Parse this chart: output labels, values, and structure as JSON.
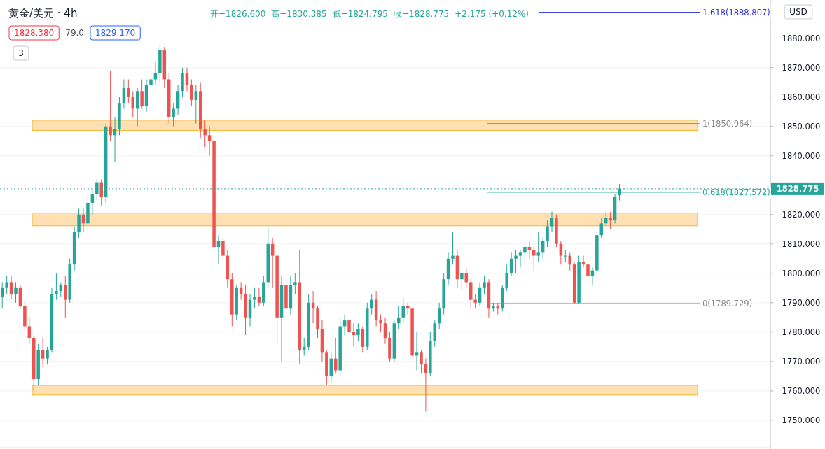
{
  "chart_data": {
    "type": "candlestick",
    "title": "黄金/美元 · 4h",
    "annotations": [
      "开=1826.600",
      "高=1830.385",
      "低=1824.795",
      "收=1828.775",
      "+2.175 (+0.12%)",
      "1828.380",
      "79.0",
      "1829.170",
      "3",
      "USD"
    ],
    "categories": [
      null,
      null,
      null,
      null,
      null,
      null,
      null,
      null,
      null,
      null,
      null,
      null,
      null,
      null,
      null,
      null,
      null,
      null,
      null,
      null,
      null,
      null,
      null,
      null,
      null,
      null,
      null,
      null,
      null,
      null,
      null,
      null,
      null,
      null,
      null,
      null,
      null,
      null,
      null,
      null,
      null,
      null,
      null,
      null,
      null,
      null,
      null,
      null,
      null,
      null,
      null,
      null,
      null,
      null,
      null,
      null,
      null,
      null,
      null,
      null,
      null,
      null,
      null,
      null,
      null,
      null,
      null,
      null,
      null,
      null,
      null,
      null,
      null,
      null,
      null,
      null,
      null,
      null,
      null,
      null,
      null,
      null,
      null,
      null,
      null,
      null,
      null,
      null,
      null,
      null,
      null,
      null,
      null,
      null,
      null,
      null,
      null,
      null,
      null,
      null,
      null,
      null,
      null,
      null,
      null,
      null,
      null,
      null,
      null,
      null,
      null,
      null,
      null,
      null,
      null,
      null,
      null,
      null,
      null,
      null,
      null,
      null,
      null,
      null,
      null,
      null,
      null,
      null,
      null,
      null,
      null,
      null,
      null,
      null,
      null,
      null,
      null,
      null,
      null,
      null,
      null,
      null,
      null,
      null,
      null,
      null,
      null,
      null,
      null,
      null,
      null,
      null,
      null,
      null,
      null,
      null,
      null,
      null,
      null,
      null,
      null,
      null,
      null,
      null,
      null,
      null,
      null,
      null,
      null,
      null,
      null
    ],
    "ohlc": [
      [
        1792,
        1797,
        1788,
        1795
      ],
      [
        1795,
        1799,
        1793,
        1797
      ],
      [
        1797,
        1799,
        1791,
        1793
      ],
      [
        1793,
        1797,
        1790,
        1795
      ],
      [
        1795,
        1796,
        1788,
        1789
      ],
      [
        1789,
        1791,
        1780,
        1782
      ],
      [
        1782,
        1785,
        1776,
        1778
      ],
      [
        1778,
        1779,
        1760,
        1764
      ],
      [
        1764,
        1776,
        1762,
        1774
      ],
      [
        1774,
        1778,
        1768,
        1771
      ],
      [
        1771,
        1775,
        1769,
        1774
      ],
      [
        1774,
        1795,
        1773,
        1793
      ],
      [
        1793,
        1800,
        1791,
        1794
      ],
      [
        1794,
        1797,
        1792,
        1796
      ],
      [
        1796,
        1799,
        1785,
        1791
      ],
      [
        1791,
        1805,
        1790,
        1803
      ],
      [
        1803,
        1816,
        1801,
        1814
      ],
      [
        1814,
        1822,
        1812,
        1820
      ],
      [
        1820,
        1822,
        1814,
        1817
      ],
      [
        1817,
        1826,
        1815,
        1824
      ],
      [
        1824,
        1829,
        1820,
        1827
      ],
      [
        1827,
        1832,
        1825,
        1831
      ],
      [
        1831,
        1832,
        1823,
        1826
      ],
      [
        1826,
        1851,
        1824,
        1850
      ],
      [
        1850,
        1869,
        1845,
        1847
      ],
      [
        1847,
        1853,
        1838,
        1849
      ],
      [
        1849,
        1860,
        1847,
        1858
      ],
      [
        1858,
        1866,
        1856,
        1863
      ],
      [
        1863,
        1866,
        1858,
        1860
      ],
      [
        1860,
        1862,
        1853,
        1856
      ],
      [
        1856,
        1863,
        1850,
        1862
      ],
      [
        1862,
        1866,
        1856,
        1857
      ],
      [
        1857,
        1866,
        1855,
        1864
      ],
      [
        1864,
        1868,
        1861,
        1866
      ],
      [
        1866,
        1872,
        1864,
        1868
      ],
      [
        1868,
        1878,
        1865,
        1876
      ],
      [
        1876,
        1877,
        1863,
        1866
      ],
      [
        1866,
        1868,
        1851,
        1853
      ],
      [
        1853,
        1858,
        1850,
        1856
      ],
      [
        1856,
        1864,
        1854,
        1862
      ],
      [
        1862,
        1870,
        1860,
        1868
      ],
      [
        1868,
        1870,
        1862,
        1864
      ],
      [
        1864,
        1866,
        1857,
        1859
      ],
      [
        1859,
        1864,
        1851,
        1862
      ],
      [
        1862,
        1865,
        1846,
        1849
      ],
      [
        1849,
        1852,
        1843,
        1847
      ],
      [
        1847,
        1850,
        1840,
        1845
      ],
      [
        1845,
        1846,
        1805,
        1809
      ],
      [
        1809,
        1813,
        1803,
        1811
      ],
      [
        1811,
        1812,
        1804,
        1806
      ],
      [
        1806,
        1808,
        1795,
        1798
      ],
      [
        1798,
        1800,
        1782,
        1786
      ],
      [
        1786,
        1796,
        1784,
        1795
      ],
      [
        1795,
        1797,
        1791,
        1793
      ],
      [
        1793,
        1796,
        1779,
        1785
      ],
      [
        1785,
        1793,
        1782,
        1791
      ],
      [
        1791,
        1795,
        1788,
        1792
      ],
      [
        1792,
        1795,
        1789,
        1790
      ],
      [
        1790,
        1799,
        1789,
        1797
      ],
      [
        1797,
        1816,
        1795,
        1810
      ],
      [
        1810,
        1812,
        1795,
        1806
      ],
      [
        1806,
        1807,
        1776,
        1785
      ],
      [
        1785,
        1799,
        1770,
        1796
      ],
      [
        1796,
        1800,
        1786,
        1788
      ],
      [
        1788,
        1799,
        1786,
        1796
      ],
      [
        1796,
        1800,
        1793,
        1797
      ],
      [
        1797,
        1808,
        1769,
        1774
      ],
      [
        1774,
        1778,
        1772,
        1775
      ],
      [
        1775,
        1793,
        1774,
        1790
      ],
      [
        1790,
        1794,
        1783,
        1788
      ],
      [
        1788,
        1789,
        1778,
        1781
      ],
      [
        1781,
        1784,
        1770,
        1773
      ],
      [
        1773,
        1774,
        1762,
        1765
      ],
      [
        1765,
        1773,
        1763,
        1771
      ],
      [
        1771,
        1778,
        1766,
        1767
      ],
      [
        1767,
        1785,
        1765,
        1782
      ],
      [
        1782,
        1786,
        1779,
        1784
      ],
      [
        1784,
        1785,
        1778,
        1780
      ],
      [
        1780,
        1783,
        1775,
        1779
      ],
      [
        1779,
        1783,
        1777,
        1781
      ],
      [
        1781,
        1782,
        1773,
        1775
      ],
      [
        1775,
        1790,
        1774,
        1788
      ],
      [
        1788,
        1793,
        1786,
        1791
      ],
      [
        1791,
        1794,
        1782,
        1784
      ],
      [
        1784,
        1786,
        1780,
        1783
      ],
      [
        1783,
        1785,
        1776,
        1778
      ],
      [
        1778,
        1780,
        1770,
        1771
      ],
      [
        1771,
        1784,
        1770,
        1783
      ],
      [
        1783,
        1789,
        1781,
        1785
      ],
      [
        1785,
        1792,
        1783,
        1789
      ],
      [
        1789,
        1790,
        1786,
        1788
      ],
      [
        1788,
        1789,
        1770,
        1772
      ],
      [
        1772,
        1780,
        1767,
        1773
      ],
      [
        1773,
        1774,
        1766,
        1769
      ],
      [
        1769,
        1771,
        1753,
        1766
      ],
      [
        1766,
        1780,
        1765,
        1777
      ],
      [
        1777,
        1784,
        1775,
        1783
      ],
      [
        1783,
        1790,
        1781,
        1788
      ],
      [
        1788,
        1800,
        1786,
        1798
      ],
      [
        1798,
        1807,
        1796,
        1805
      ],
      [
        1805,
        1814,
        1803,
        1806
      ],
      [
        1806,
        1808,
        1795,
        1798
      ],
      [
        1798,
        1801,
        1794,
        1800
      ],
      [
        1800,
        1802,
        1795,
        1797
      ],
      [
        1797,
        1798,
        1788,
        1791
      ],
      [
        1791,
        1793,
        1788,
        1790
      ],
      [
        1790,
        1797,
        1789,
        1795
      ],
      [
        1795,
        1799,
        1793,
        1797
      ],
      [
        1797,
        1798,
        1785,
        1788
      ],
      [
        1788,
        1790,
        1787,
        1789
      ],
      [
        1789,
        1790,
        1786,
        1788
      ],
      [
        1788,
        1796,
        1787,
        1795
      ],
      [
        1795,
        1803,
        1794,
        1800
      ],
      [
        1800,
        1807,
        1799,
        1805
      ],
      [
        1805,
        1808,
        1800,
        1806
      ],
      [
        1806,
        1808,
        1802,
        1807
      ],
      [
        1807,
        1810,
        1804,
        1809
      ],
      [
        1809,
        1811,
        1805,
        1808
      ],
      [
        1808,
        1809,
        1801,
        1806
      ],
      [
        1806,
        1814,
        1804,
        1807
      ],
      [
        1807,
        1812,
        1805,
        1811
      ],
      [
        1811,
        1818,
        1809,
        1816
      ],
      [
        1816,
        1821,
        1814,
        1819
      ],
      [
        1819,
        1820,
        1809,
        1810
      ],
      [
        1810,
        1811,
        1803,
        1806
      ],
      [
        1806,
        1808,
        1804,
        1806
      ],
      [
        1806,
        1807,
        1801,
        1803
      ],
      [
        1803,
        1804,
        1789.5,
        1790
      ],
      [
        1790,
        1806,
        1789.5,
        1804
      ],
      [
        1804,
        1806,
        1802,
        1803
      ],
      [
        1803,
        1804,
        1797,
        1799
      ],
      [
        1799,
        1802,
        1796,
        1801
      ],
      [
        1801,
        1814,
        1800,
        1813
      ],
      [
        1813,
        1819,
        1812,
        1817
      ],
      [
        1817,
        1821,
        1816,
        1819
      ],
      [
        1819,
        1821,
        1815,
        1818
      ],
      [
        1818,
        1827,
        1817,
        1826
      ],
      [
        1826.6,
        1830.385,
        1824.795,
        1828.775
      ],
      null,
      null,
      null,
      null,
      null,
      null,
      null,
      null,
      null,
      null,
      null,
      null,
      null,
      null,
      null,
      null,
      null,
      null,
      null,
      null,
      null,
      null,
      null,
      null,
      null,
      null,
      null,
      null,
      null,
      null,
      null,
      null,
      null
    ],
    "ylim": [
      1740.7,
      1893
    ],
    "yticks": [
      {
        "value": 1750,
        "label": "1750.000"
      },
      {
        "value": 1760,
        "label": "1760.000"
      },
      {
        "value": 1770,
        "label": "1770.000"
      },
      {
        "value": 1780,
        "label": "1780.000"
      },
      {
        "value": 1790,
        "label": "1790.000"
      },
      {
        "value": 1800,
        "label": "1800.000"
      },
      {
        "value": 1810,
        "label": "1810.000"
      },
      {
        "value": 1820,
        "label": "1820.000"
      },
      {
        "value": 1840,
        "label": "1840.000"
      },
      {
        "value": 1850,
        "label": "1850.000"
      },
      {
        "value": 1860,
        "label": "1860.000"
      },
      {
        "value": 1870,
        "label": "1870.000"
      },
      {
        "value": 1880,
        "label": "1880.000"
      }
    ],
    "tick_labels": "y",
    "grid": "y",
    "bands": [
      {
        "axis": "y",
        "from": 1848.6,
        "to": 1852.1,
        "color": "#ffe0b2"
      },
      {
        "axis": "y",
        "from": 1816.2,
        "to": 1820.5,
        "color": "#ffe0b2"
      },
      {
        "axis": "y",
        "from": 1758.6,
        "to": 1761.9,
        "color": "#ffe0b2"
      }
    ],
    "ref_lines": [
      {
        "axis": "y",
        "value": 1888.807,
        "label": "1.618(1888.807)",
        "color": "#2a2ed6"
      },
      {
        "axis": "y",
        "value": 1850.964,
        "label": "1(1850.964)",
        "color": "#8a8a8a"
      },
      {
        "axis": "y",
        "value": 1827.572,
        "label": "0.618(1827.572)",
        "color": "#22ab94"
      },
      {
        "axis": "y",
        "value": 1789.729,
        "label": "0(1789.729)",
        "color": "#8a8a8a"
      },
      {
        "axis": "y",
        "value": 1828.775,
        "label": "1828.775",
        "color": "#26a69a",
        "line_style": "dotted"
      }
    ]
  }
}
